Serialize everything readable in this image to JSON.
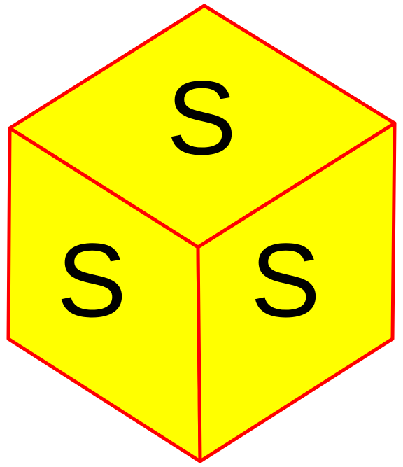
{
  "cube": {
    "fill_color": "#ffff00",
    "edge_color": "#ff0000",
    "letter_color": "#000000",
    "faces": {
      "top": {
        "letter": "S"
      },
      "left": {
        "letter": "S"
      },
      "right": {
        "letter": "S"
      }
    }
  }
}
